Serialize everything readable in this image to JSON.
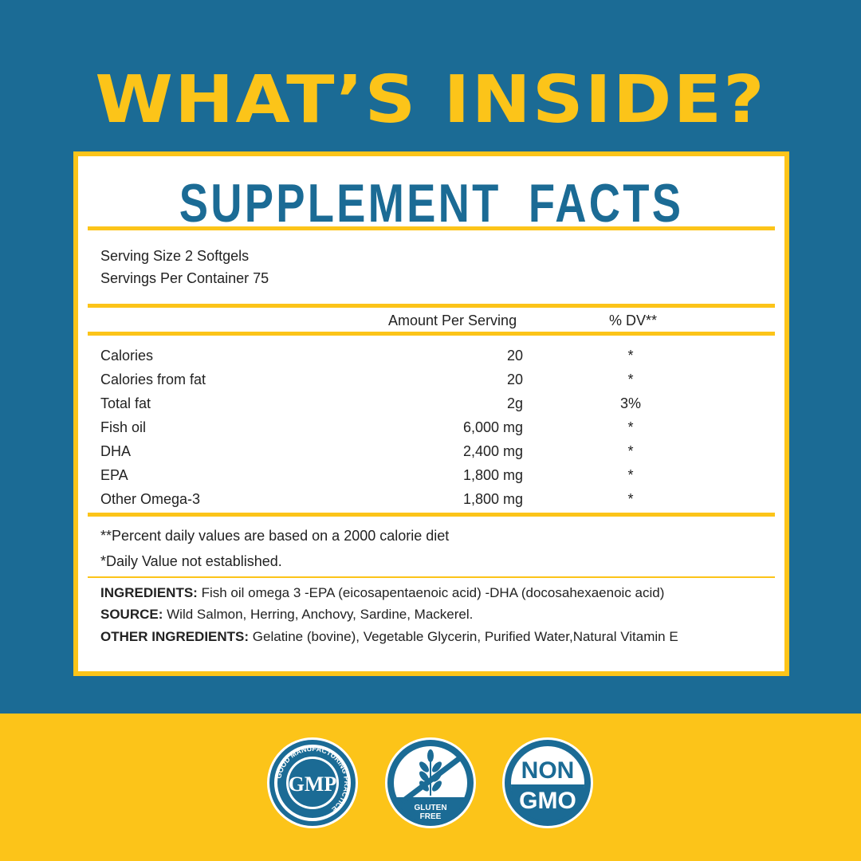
{
  "headline": "WHAT’S INSIDE?",
  "panel": {
    "title": "SUPPLEMENT FACTS",
    "serving_size": "Serving Size 2 Softgels",
    "servings_per_container": "Servings Per Container 75",
    "col_amount": "Amount Per Serving",
    "col_dv": "% DV**",
    "rows": [
      {
        "name": "Calories",
        "amount": "20",
        "dv": "*"
      },
      {
        "name": "Calories from fat",
        "amount": "20",
        "dv": "*"
      },
      {
        "name": "Total fat",
        "amount": "2g",
        "dv": "3%"
      },
      {
        "name": "Fish oil",
        "amount": "6,000 mg",
        "dv": "*"
      },
      {
        "name": "DHA",
        "amount": "2,400 mg",
        "dv": "*"
      },
      {
        "name": "EPA",
        "amount": "1,800 mg",
        "dv": "*"
      },
      {
        "name": "Other Omega-3",
        "amount": "1,800 mg",
        "dv": "*"
      }
    ],
    "footnote1": "**Percent daily values are based on a 2000 calorie diet",
    "footnote2": "*Daily Value not established.",
    "ingredients_label": "INGREDIENTS:",
    "ingredients": " Fish oil omega 3 -EPA (eicosapentaenoic acid) -DHA (docosahexaenoic acid)",
    "source_label": "SOURCE:",
    "source": " Wild Salmon, Herring, Anchovy, Sardine, Mackerel.",
    "other_label": "OTHER INGREDIENTS:",
    "other": " Gelatine (bovine), Vegetable Glycerin, Purified Water,Natural Vitamin E"
  },
  "badges": {
    "gmp": {
      "center": "GMP",
      "ring": "GOOD MANUFACTURING PRACTICE"
    },
    "gluten": {
      "line1": "GLUTEN",
      "line2": "FREE",
      "icon": "wheat-crossed-icon"
    },
    "gmo": {
      "line1": "NON",
      "line2": "GMO"
    }
  },
  "colors": {
    "blue": "#1b6b95",
    "yellow": "#fcc419"
  }
}
